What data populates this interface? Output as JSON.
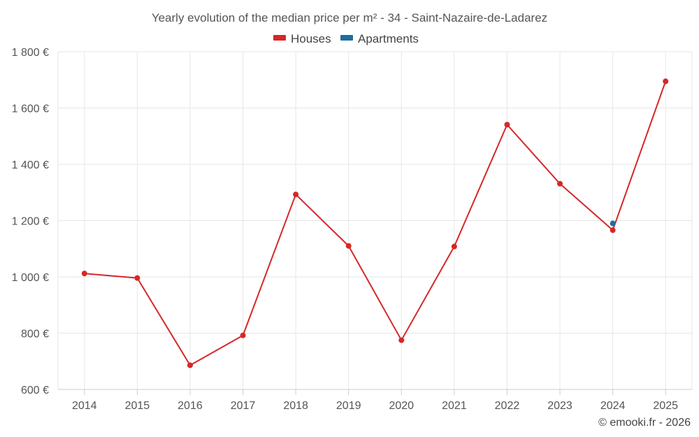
{
  "chart_data": {
    "type": "line",
    "title": "Yearly evolution of the median price per m² - 34 - Saint-Nazaire-de-Ladarez",
    "categories": [
      "2014",
      "2015",
      "2016",
      "2017",
      "2018",
      "2019",
      "2020",
      "2021",
      "2022",
      "2023",
      "2024",
      "2025"
    ],
    "ylim": [
      600,
      1800
    ],
    "yticks": [
      600,
      800,
      1000,
      1200,
      1400,
      1600,
      1800
    ],
    "ytick_labels": [
      "600 €",
      "800 €",
      "1 000 €",
      "1 200 €",
      "1 400 €",
      "1 600 €",
      "1 800 €"
    ],
    "xlabel": "",
    "ylabel": "",
    "grid": true,
    "legend_position": "top-center",
    "series": [
      {
        "name": "Houses",
        "color": "#d62728",
        "values": [
          1012,
          996,
          686,
          792,
          1293,
          1110,
          775,
          1108,
          1541,
          1331,
          1166,
          1695
        ]
      },
      {
        "name": "Apartments",
        "color": "#1f6e9c",
        "values": [
          null,
          null,
          null,
          null,
          null,
          null,
          null,
          null,
          null,
          null,
          1190,
          null
        ]
      }
    ],
    "credit": "© emooki.fr - 2026"
  }
}
